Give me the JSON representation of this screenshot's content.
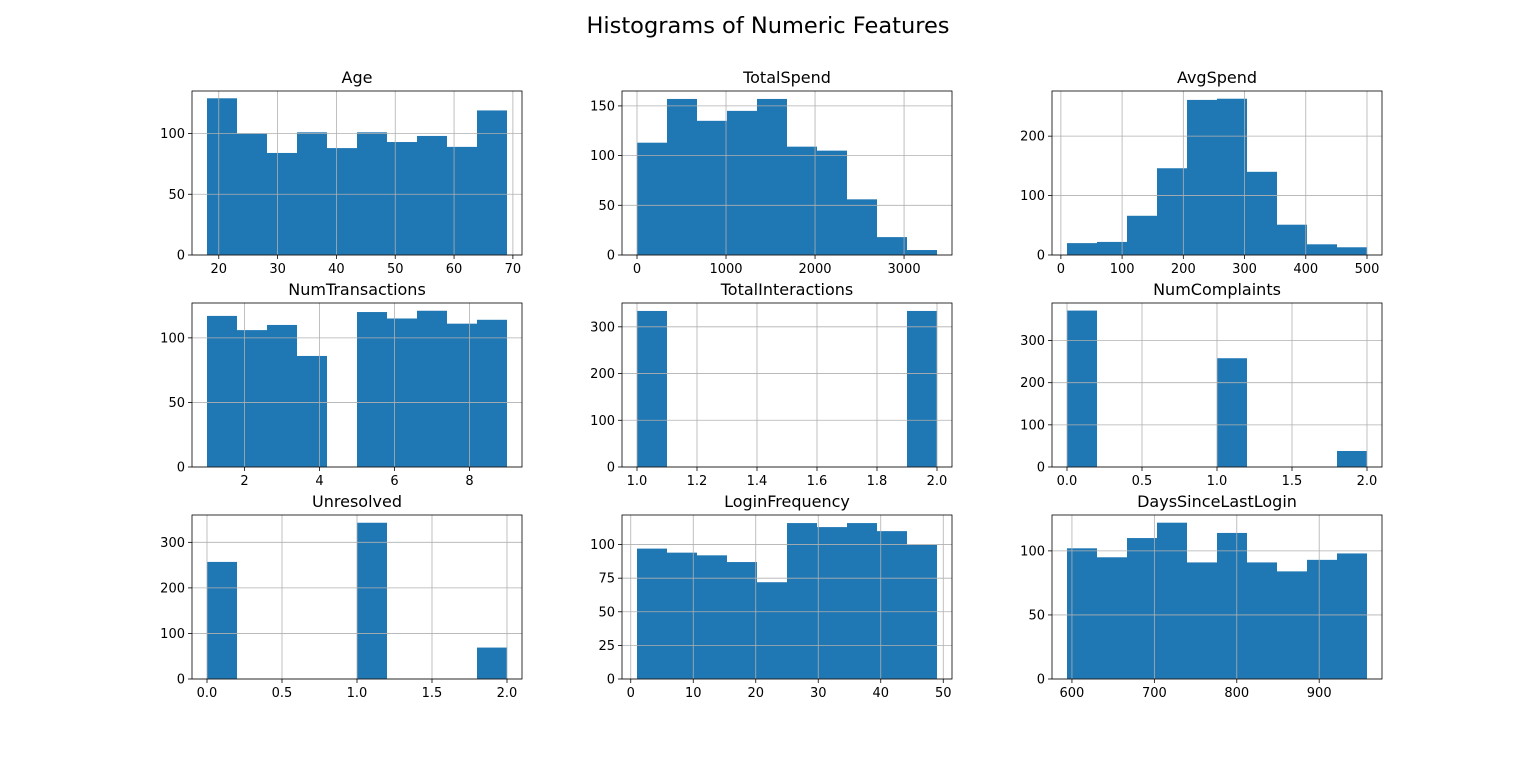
{
  "title": "Histograms of Numeric Features",
  "colors": {
    "bar": "#1f77b4",
    "grid": "#b0b0b0",
    "axis": "#000000"
  },
  "chart_data": [
    {
      "type": "bar",
      "title": "Age",
      "grid": true,
      "bin_edges": [
        18,
        23.1,
        28.2,
        33.3,
        38.4,
        43.5,
        48.6,
        53.7,
        58.8,
        63.9,
        69
      ],
      "values": [
        129,
        100,
        84,
        101,
        88,
        101,
        93,
        98,
        89,
        119
      ],
      "xlim": [
        15.45,
        71.55
      ],
      "ylim": [
        0,
        135
      ],
      "xticks": [
        20,
        30,
        40,
        50,
        60,
        70
      ],
      "yticks": [
        0,
        50,
        100
      ]
    },
    {
      "type": "bar",
      "title": "TotalSpend",
      "grid": true,
      "bin_edges": [
        0,
        337,
        674,
        1011,
        1348,
        1685,
        2022,
        2359,
        2696,
        3033,
        3370
      ],
      "values": [
        113,
        157,
        135,
        145,
        157,
        109,
        105,
        56,
        18,
        5
      ],
      "xlim": [
        -168.5,
        3538.5
      ],
      "ylim": [
        0,
        165
      ],
      "xticks": [
        0,
        1000,
        2000,
        3000
      ],
      "yticks": [
        0,
        50,
        100,
        150
      ]
    },
    {
      "type": "bar",
      "title": "AvgSpend",
      "grid": true,
      "bin_edges": [
        10,
        59,
        108,
        157,
        206,
        255,
        304,
        353,
        402,
        451,
        500
      ],
      "values": [
        20,
        22,
        66,
        146,
        261,
        263,
        140,
        51,
        18,
        13
      ],
      "xlim": [
        -14.5,
        524.5
      ],
      "ylim": [
        0,
        276
      ],
      "xticks": [
        0,
        100,
        200,
        300,
        400,
        500
      ],
      "yticks": [
        0,
        100,
        200
      ]
    },
    {
      "type": "bar",
      "title": "NumTransactions",
      "grid": true,
      "bin_edges": [
        1,
        1.8,
        2.6,
        3.4,
        4.2,
        5,
        5.8,
        6.6,
        7.4,
        8.2,
        9
      ],
      "values": [
        117,
        106,
        110,
        86,
        0,
        120,
        115,
        121,
        111,
        114
      ],
      "xlim": [
        0.6,
        9.4
      ],
      "ylim": [
        0,
        127
      ],
      "xticks": [
        2,
        4,
        6,
        8
      ],
      "yticks": [
        0,
        50,
        100
      ]
    },
    {
      "type": "bar",
      "title": "TotalInteractions",
      "grid": true,
      "bin_edges": [
        1,
        1.1,
        1.2,
        1.3,
        1.4,
        1.5,
        1.6,
        1.7,
        1.8,
        1.9,
        2
      ],
      "values": [
        334,
        0,
        0,
        0,
        0,
        0,
        0,
        0,
        0,
        334
      ],
      "xlim": [
        0.95,
        2.05
      ],
      "ylim": [
        0,
        351
      ],
      "xticks": [
        1.0,
        1.2,
        1.4,
        1.6,
        1.8,
        2.0
      ],
      "yticks": [
        0,
        100,
        200,
        300
      ]
    },
    {
      "type": "bar",
      "title": "NumComplaints",
      "grid": true,
      "bin_edges": [
        0,
        0.2,
        0.4,
        0.6,
        0.8,
        1.0,
        1.2,
        1.4,
        1.6,
        1.8,
        2.0
      ],
      "values": [
        371,
        0,
        0,
        0,
        0,
        258,
        0,
        0,
        0,
        38
      ],
      "xlim": [
        -0.1,
        2.1
      ],
      "ylim": [
        0,
        389
      ],
      "xticks": [
        0.0,
        0.5,
        1.0,
        1.5,
        2.0
      ],
      "yticks": [
        0,
        100,
        200,
        300
      ]
    },
    {
      "type": "bar",
      "title": "Unresolved",
      "grid": true,
      "bin_edges": [
        0,
        0.2,
        0.4,
        0.6,
        0.8,
        1.0,
        1.2,
        1.4,
        1.6,
        1.8,
        2.0
      ],
      "values": [
        257,
        0,
        0,
        0,
        0,
        343,
        0,
        0,
        0,
        69
      ],
      "xlim": [
        -0.1,
        2.1
      ],
      "ylim": [
        0,
        360
      ],
      "xticks": [
        0.0,
        0.5,
        1.0,
        1.5,
        2.0
      ],
      "yticks": [
        0,
        100,
        200,
        300
      ]
    },
    {
      "type": "bar",
      "title": "LoginFrequency",
      "grid": true,
      "bin_edges": [
        1,
        5.8,
        10.6,
        15.4,
        20.2,
        25,
        29.8,
        34.6,
        39.4,
        44.2,
        49
      ],
      "values": [
        97,
        94,
        92,
        87,
        72,
        116,
        113,
        116,
        110,
        100
      ],
      "xlim": [
        -1.4,
        51.4
      ],
      "ylim": [
        0,
        122
      ],
      "xticks": [
        0,
        10,
        20,
        30,
        40,
        50
      ],
      "yticks": [
        0,
        25,
        50,
        75,
        100
      ]
    },
    {
      "type": "bar",
      "title": "DaysSinceLastLogin",
      "grid": true,
      "bin_edges": [
        594,
        630.4,
        666.8,
        703.2,
        739.6,
        776,
        812.4,
        848.8,
        885.2,
        921.6,
        958
      ],
      "values": [
        102,
        95,
        110,
        122,
        91,
        114,
        91,
        84,
        93,
        98
      ],
      "xlim": [
        575.8,
        976.2
      ],
      "ylim": [
        0,
        128
      ],
      "xticks": [
        600,
        700,
        800,
        900
      ],
      "yticks": [
        0,
        50,
        100
      ]
    }
  ]
}
